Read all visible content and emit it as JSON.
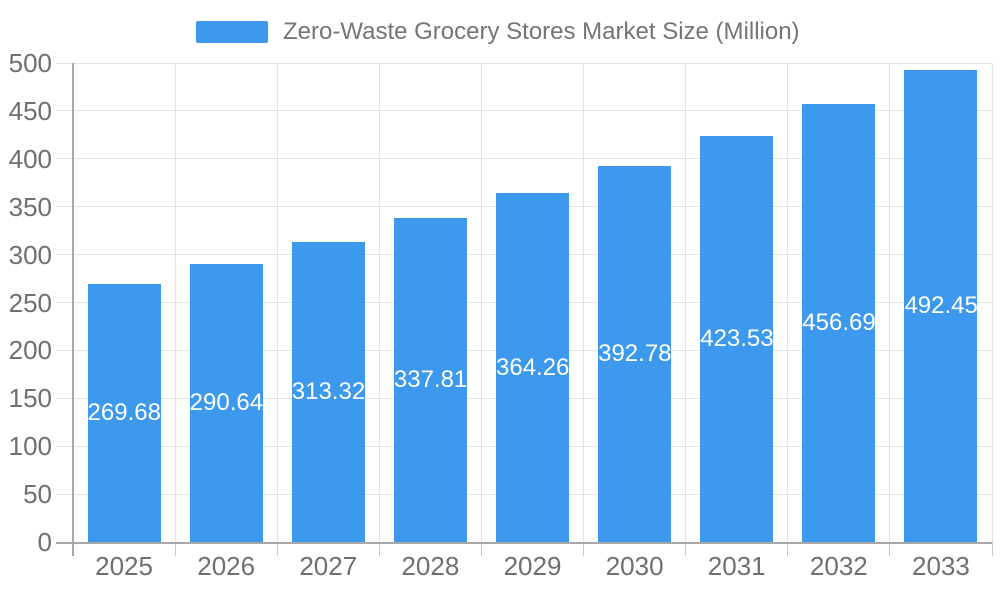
{
  "chart_data": {
    "type": "bar",
    "title": "Zero-Waste Grocery Stores Market Size (Million)",
    "xlabel": "",
    "ylabel": "",
    "categories": [
      "2025",
      "2026",
      "2027",
      "2028",
      "2029",
      "2030",
      "2031",
      "2032",
      "2033"
    ],
    "values": [
      269.68,
      290.64,
      313.32,
      337.81,
      364.26,
      392.78,
      423.53,
      456.69,
      492.45
    ],
    "value_labels": [
      "269.68",
      "290.64",
      "313.32",
      "337.81",
      "364.26",
      "392.78",
      "423.53",
      "456.69",
      "492.45"
    ],
    "ylim": [
      0,
      500
    ],
    "yticks": [
      0,
      50,
      100,
      150,
      200,
      250,
      300,
      350,
      400,
      450,
      500
    ],
    "legend_position": "top",
    "grid": "both",
    "colors": {
      "bar": "#3d99ee",
      "grid_line": "#e3e3e3",
      "axis_line": "#a8a8a8",
      "tick_line": "#c9c9c9",
      "axis_label": "#6f6f6f",
      "title": "#757575",
      "value_label": "#ffffff",
      "background": "#ffffff"
    }
  }
}
